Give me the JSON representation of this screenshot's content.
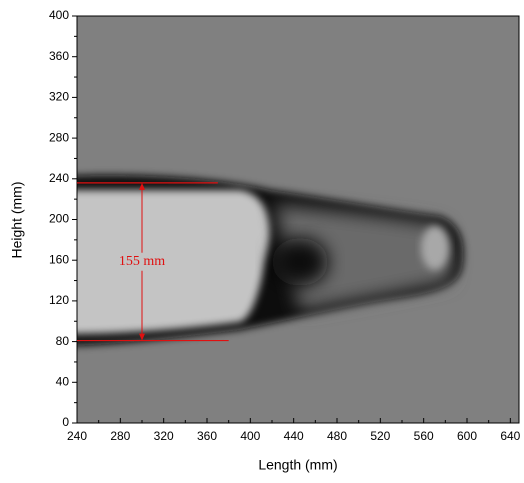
{
  "chart_data": {
    "type": "image",
    "xlabel": "Length (mm)",
    "ylabel": "Height (mm)",
    "xlim": [
      240,
      648
    ],
    "ylim": [
      0,
      400
    ],
    "xticks": [
      240,
      280,
      320,
      360,
      400,
      440,
      480,
      520,
      560,
      600,
      640
    ],
    "yticks": [
      0,
      40,
      80,
      120,
      160,
      200,
      240,
      280,
      320,
      360,
      400
    ],
    "reference_lines": [
      {
        "y": 236,
        "x": [
          240,
          370
        ],
        "color": "#e01010"
      },
      {
        "y": 81,
        "x": [
          240,
          380
        ],
        "color": "#e01010"
      }
    ],
    "dimension": {
      "x": 300,
      "y": [
        81,
        236
      ],
      "label": "155 mm",
      "color": "#e01010"
    }
  }
}
